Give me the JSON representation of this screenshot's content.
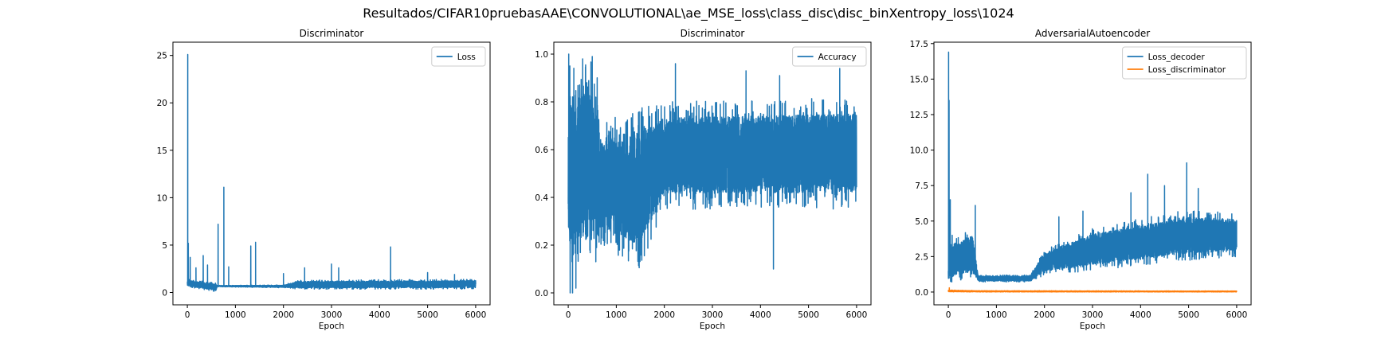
{
  "figure_title": "Resultados/CIFAR10pruebasAAE\\CONVOLUTIONAL\\ae_MSE_loss\\class_disc\\disc_binXentropy_loss\\1024",
  "colors": {
    "blue": "#1f77b4",
    "orange": "#ff7f0e",
    "axes": "#000000",
    "background": "#ffffff"
  },
  "chart_data": [
    {
      "type": "line",
      "title": "Discriminator",
      "xlabel": "Epoch",
      "ylabel": "",
      "xlim": [
        -300,
        6300
      ],
      "ylim": [
        -1.3,
        26.4
      ],
      "xticks": [
        0,
        1000,
        2000,
        3000,
        4000,
        5000,
        6000
      ],
      "yticks": [
        0,
        5,
        10,
        15,
        20,
        25
      ],
      "grid": false,
      "legend": "top-right",
      "series": [
        {
          "name": "Loss",
          "color": "#1f77b4",
          "profile": {
            "x_start": 0,
            "x_end": 6000,
            "n": 6000,
            "seed": 11
          },
          "spikes": [
            [
              8,
              25.1
            ],
            [
              20,
              5.2
            ],
            [
              60,
              3.7
            ],
            [
              180,
              2.6
            ],
            [
              330,
              3.9
            ],
            [
              420,
              2.9
            ],
            [
              640,
              7.2
            ],
            [
              760,
              11.1
            ],
            [
              860,
              2.7
            ],
            [
              1320,
              4.9
            ],
            [
              1420,
              5.3
            ],
            [
              2000,
              2.0
            ],
            [
              2440,
              2.6
            ],
            [
              3000,
              3.0
            ],
            [
              3150,
              2.6
            ],
            [
              4230,
              4.8
            ],
            [
              5000,
              2.1
            ],
            [
              5560,
              1.9
            ]
          ],
          "envelope": [
            [
              0,
              0.6,
              1.4
            ],
            [
              600,
              0.05,
              1.0
            ],
            [
              620,
              0.6,
              0.75
            ],
            [
              2000,
              0.5,
              0.8
            ],
            [
              2300,
              0.35,
              1.3
            ],
            [
              6000,
              0.35,
              1.4
            ]
          ]
        }
      ]
    },
    {
      "type": "line",
      "title": "Discriminator",
      "xlabel": "Epoch",
      "ylabel": "",
      "xlim": [
        -300,
        6300
      ],
      "ylim": [
        -0.05,
        1.05
      ],
      "xticks": [
        0,
        1000,
        2000,
        3000,
        4000,
        5000,
        6000
      ],
      "yticks": [
        0.0,
        0.2,
        0.4,
        0.6,
        0.8,
        1.0
      ],
      "ytick_labels": [
        "0.0",
        "0.2",
        "0.4",
        "0.6",
        "0.8",
        "1.0"
      ],
      "grid": false,
      "legend": "top-right",
      "series": [
        {
          "name": "Accuracy",
          "color": "#1f77b4",
          "profile": {
            "x_start": 0,
            "x_end": 6000,
            "n": 6000,
            "seed": 23
          },
          "spikes": [
            [
              10,
              1.0
            ],
            [
              40,
              0.0
            ],
            [
              90,
              0.0
            ],
            [
              160,
              0.02
            ],
            [
              300,
              0.98
            ],
            [
              500,
              0.99
            ],
            [
              2230,
              0.96
            ],
            [
              3700,
              0.93
            ],
            [
              4270,
              0.1
            ],
            [
              4400,
              0.91
            ],
            [
              5650,
              0.94
            ]
          ],
          "envelope": [
            [
              0,
              0.1,
              0.95
            ],
            [
              600,
              0.1,
              0.98
            ],
            [
              650,
              0.2,
              0.7
            ],
            [
              1000,
              0.15,
              0.75
            ],
            [
              1500,
              0.1,
              0.78
            ],
            [
              2000,
              0.35,
              0.8
            ],
            [
              6000,
              0.35,
              0.82
            ]
          ]
        }
      ]
    },
    {
      "type": "line",
      "title": "AdversarialAutoencoder",
      "xlabel": "Epoch",
      "ylabel": "",
      "xlim": [
        -300,
        6300
      ],
      "ylim": [
        -0.9,
        17.6
      ],
      "xticks": [
        0,
        1000,
        2000,
        3000,
        4000,
        5000,
        6000
      ],
      "yticks": [
        0.0,
        2.5,
        5.0,
        7.5,
        10.0,
        12.5,
        15.0,
        17.5
      ],
      "ytick_labels": [
        "0.0",
        "2.5",
        "5.0",
        "7.5",
        "10.0",
        "12.5",
        "15.0",
        "17.5"
      ],
      "grid": false,
      "legend": "top-right",
      "series": [
        {
          "name": "Loss_decoder",
          "color": "#1f77b4",
          "profile": {
            "x_start": 0,
            "x_end": 6000,
            "n": 6000,
            "seed": 37
          },
          "spikes": [
            [
              5,
              16.9
            ],
            [
              15,
              13.5
            ],
            [
              40,
              6.5
            ],
            [
              80,
              4.0
            ],
            [
              560,
              6.1
            ],
            [
              2300,
              5.3
            ],
            [
              2800,
              5.7
            ],
            [
              3800,
              7.0
            ],
            [
              4150,
              8.3
            ],
            [
              4500,
              7.5
            ],
            [
              4960,
              9.1
            ],
            [
              5200,
              7.3
            ]
          ],
          "envelope": [
            [
              0,
              0.5,
              3.5
            ],
            [
              500,
              1.0,
              4.5
            ],
            [
              620,
              0.7,
              1.2
            ],
            [
              1700,
              0.7,
              1.2
            ],
            [
              2000,
              1.2,
              3.0
            ],
            [
              3000,
              1.5,
              4.5
            ],
            [
              4000,
              1.9,
              5.2
            ],
            [
              5000,
              2.2,
              5.8
            ],
            [
              6000,
              2.5,
              5.6
            ]
          ]
        },
        {
          "name": "Loss_discriminator",
          "color": "#ff7f0e",
          "profile": {
            "x_start": 0,
            "x_end": 6000,
            "n": 6000,
            "seed": 41
          },
          "spikes": [
            [
              20,
              0.3
            ]
          ],
          "envelope": [
            [
              0,
              0.0,
              0.15
            ],
            [
              600,
              0.0,
              0.1
            ],
            [
              6000,
              0.0,
              0.08
            ]
          ]
        }
      ]
    }
  ]
}
